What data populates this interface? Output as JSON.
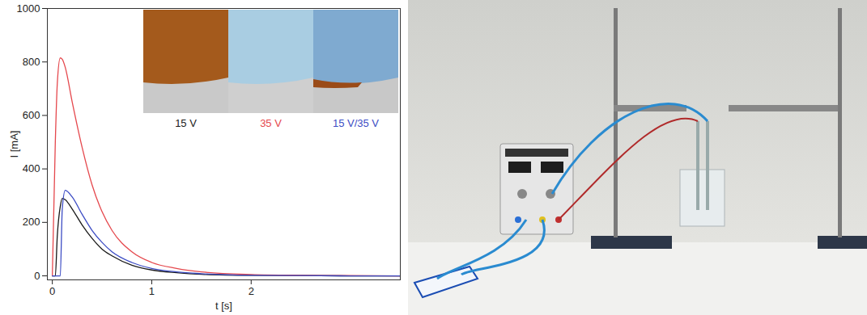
{
  "chart_data": {
    "type": "line",
    "x_label": "t [s]",
    "y_label": "I [mA]",
    "xlim": [
      -0.05,
      3.5
    ],
    "ylim": [
      -15,
      1000
    ],
    "xticks": [
      0,
      1,
      2
    ],
    "yticks": [
      0,
      200,
      400,
      600,
      800,
      1000
    ],
    "grid": false,
    "legend": "top-right",
    "x": [
      0,
      0.03,
      0.05,
      0.08,
      0.1,
      0.13,
      0.2,
      0.3,
      0.4,
      0.5,
      0.6,
      0.8,
      1.0,
      1.25,
      1.5,
      2.0,
      2.5,
      3.0,
      3.5
    ],
    "series": [
      {
        "name": "15 V",
        "color": "#1a1a1a",
        "values": [
          0,
          0,
          150,
          260,
          290,
          285,
          250,
          190,
          140,
          100,
          75,
          40,
          22,
          12,
          6,
          2,
          1,
          0,
          0
        ]
      },
      {
        "name": "35 V",
        "color": "#e5484d",
        "values": [
          0,
          500,
          720,
          815,
          810,
          780,
          650,
          480,
          340,
          240,
          170,
          90,
          50,
          28,
          15,
          5,
          2,
          1,
          0
        ]
      },
      {
        "name": "15 V/35 V",
        "color": "#3c4cc4",
        "values": [
          0,
          0,
          0,
          0,
          250,
          320,
          295,
          230,
          170,
          125,
          90,
          50,
          28,
          15,
          8,
          2,
          1,
          0,
          0
        ]
      }
    ]
  }
}
